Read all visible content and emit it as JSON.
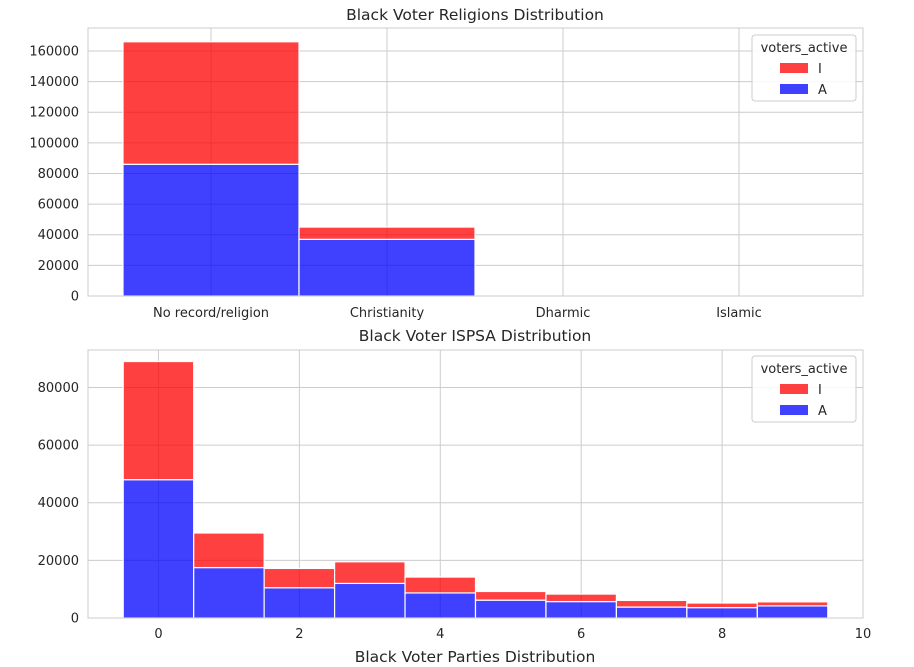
{
  "chart_data": [
    {
      "type": "bar",
      "stacked": true,
      "title": "Black Voter Religions Distribution",
      "categories": [
        "No record/religion",
        "Christianity",
        "Dharmic",
        "Islamic"
      ],
      "series": [
        {
          "name": "A",
          "color": "#0000ff",
          "values": [
            86000,
            37000,
            0,
            0
          ]
        },
        {
          "name": "I",
          "color": "#ff0000",
          "values": [
            80000,
            8000,
            0,
            0
          ]
        }
      ],
      "ylim": [
        0,
        175000
      ],
      "yticks": [
        0,
        20000,
        40000,
        60000,
        80000,
        100000,
        120000,
        140000,
        160000
      ],
      "grid": true,
      "legend": {
        "title": "voters_active",
        "position": "top-right",
        "entries": [
          "I",
          "A"
        ]
      }
    },
    {
      "type": "bar",
      "stacked": true,
      "title": "Black Voter ISPSA Distribution",
      "xlabel": "Black Voter Parties Distribution",
      "x": [
        0,
        1,
        2,
        3,
        4,
        5,
        6,
        7,
        8,
        9
      ],
      "series": [
        {
          "name": "A",
          "color": "#0000ff",
          "values": [
            48000,
            17500,
            10500,
            12000,
            8700,
            6200,
            5700,
            3800,
            3600,
            4200
          ]
        },
        {
          "name": "I",
          "color": "#ff0000",
          "values": [
            41000,
            12000,
            6700,
            7500,
            5500,
            3000,
            2600,
            2300,
            1600,
            1400
          ]
        }
      ],
      "xlim": [
        -1,
        10
      ],
      "xticks": [
        0,
        2,
        4,
        6,
        8,
        10
      ],
      "ylim": [
        0,
        93000
      ],
      "yticks": [
        0,
        20000,
        40000,
        60000,
        80000
      ],
      "grid": true,
      "legend": {
        "title": "voters_active",
        "position": "top-right",
        "entries": [
          "I",
          "A"
        ]
      }
    }
  ]
}
